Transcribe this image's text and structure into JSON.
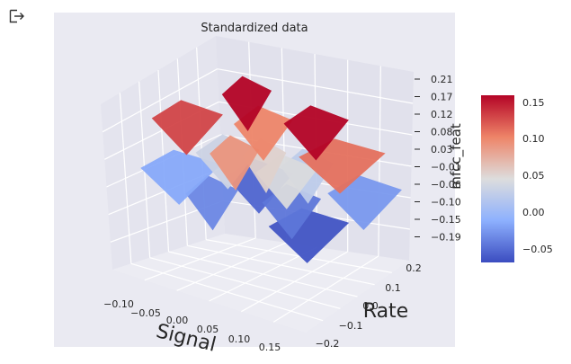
{
  "output_icon": "output-arrow-icon",
  "chart_data": {
    "type": "surface3d",
    "title": "Standardized data",
    "xlabel": "Signal",
    "ylabel": "Rate",
    "zlabel": "mfcc_feat",
    "x_ticks": [
      "−0.10",
      "−0.05",
      "0.00",
      "0.05",
      "0.10",
      "0.15"
    ],
    "y_ticks": [
      "0.2",
      "0.1",
      "0.0",
      "−0.1",
      "−0.2"
    ],
    "z_ticks": [
      "0.21",
      "0.17",
      "0.12",
      "0.08",
      "0.03",
      "−0.01",
      "−0.06",
      "−0.10",
      "−0.15",
      "−0.19"
    ],
    "colorbar_ticks": [
      "0.15",
      "0.10",
      "0.05",
      "0.00",
      "−0.05"
    ],
    "colorbar_range": [
      -0.075,
      0.16
    ],
    "colormap": "coolwarm",
    "colors": {
      "cool": "#3b4cc0",
      "neutral": "#dddddd",
      "warm": "#b40426",
      "pane_back": "#e3e3ee",
      "pane_floor": "#ebebf2",
      "figure_bg": "#eaeaf2"
    },
    "surface_points": [
      {
        "x": -0.02,
        "y": 0.02,
        "z": 0.21
      },
      {
        "x": 0.07,
        "y": -0.02,
        "z": 0.16
      },
      {
        "x": -0.09,
        "y": 0.08,
        "z": 0.13
      },
      {
        "x": 0.14,
        "y": 0.05,
        "z": 0.11
      },
      {
        "x": -0.05,
        "y": -0.1,
        "z": 0.1
      },
      {
        "x": 0.02,
        "y": 0.15,
        "z": 0.09
      },
      {
        "x": 0.0,
        "y": 0.0,
        "z": 0.05
      },
      {
        "x": 0.06,
        "y": 0.06,
        "z": 0.04
      },
      {
        "x": -0.07,
        "y": -0.02,
        "z": 0.03
      },
      {
        "x": 0.03,
        "y": -0.08,
        "z": 0.02
      },
      {
        "x": -0.12,
        "y": 0.04,
        "z": -0.02
      },
      {
        "x": 0.1,
        "y": -0.12,
        "z": -0.03
      },
      {
        "x": -0.03,
        "y": 0.12,
        "z": -0.04
      },
      {
        "x": 0.05,
        "y": 0.02,
        "z": -0.05
      },
      {
        "x": -0.08,
        "y": -0.15,
        "z": -0.06
      },
      {
        "x": 0.12,
        "y": 0.12,
        "z": -0.07
      }
    ]
  }
}
